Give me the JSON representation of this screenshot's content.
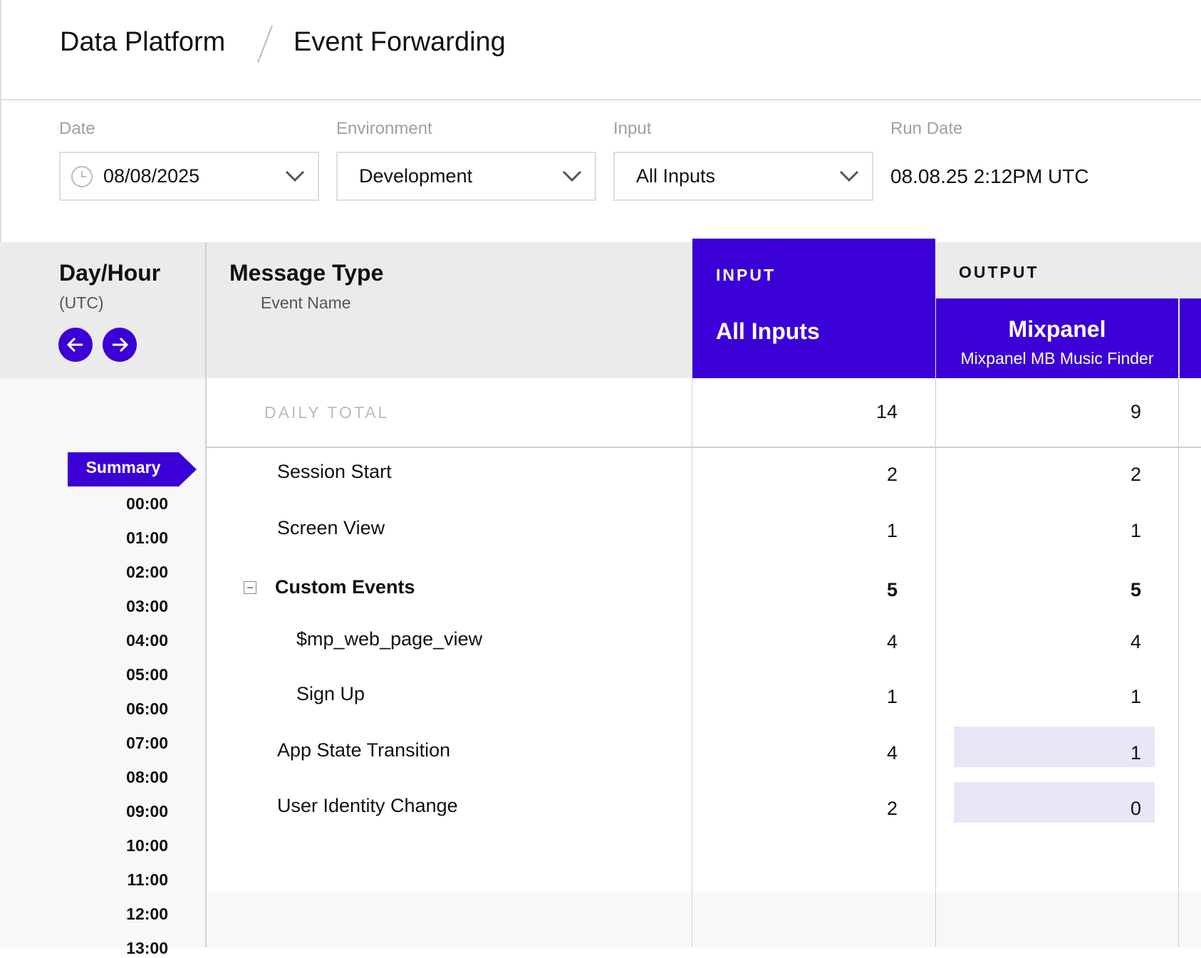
{
  "header": {
    "breadcrumb": [
      "Data Platform",
      "Event Forwarding"
    ]
  },
  "filters": [
    {
      "label": "Date",
      "value": "08/08/2025"
    },
    {
      "label": "Environment",
      "value": "Development"
    },
    {
      "label": "Input",
      "value": "All Inputs"
    },
    {
      "label": "Run Date",
      "value": "08.08.25 2:12PM UTC"
    }
  ],
  "table": {
    "day_hour": {
      "title": "Day/Hour",
      "subtitle": "(UTC)"
    },
    "message_type": {
      "title": "Message Type",
      "subtitle": "Event Name"
    },
    "input": {
      "section": "INPUT",
      "name": "All Inputs"
    },
    "output": {
      "section": "OUTPUT",
      "name": "Mixpanel",
      "subtitle": "Mixpanel MB Music Finder"
    },
    "daily_total": {
      "label": "DAILY TOTAL",
      "input": 14,
      "output": 9
    },
    "rows": [
      {
        "name": "Session Start",
        "input": 2,
        "output": 2,
        "level": 1,
        "bold": false,
        "highlight": false
      },
      {
        "name": "Screen View",
        "input": 1,
        "output": 1,
        "level": 1,
        "bold": false,
        "highlight": false
      },
      {
        "name": "Custom Events",
        "input": 5,
        "output": 5,
        "level": 1,
        "bold": true,
        "highlight": false
      },
      {
        "name": "$mp_web_page_view",
        "input": 4,
        "output": 4,
        "level": 2,
        "bold": false,
        "highlight": false
      },
      {
        "name": "Sign Up",
        "input": 1,
        "output": 1,
        "level": 2,
        "bold": false,
        "highlight": false
      },
      {
        "name": "App State Transition",
        "input": 4,
        "output": 1,
        "level": 1,
        "bold": false,
        "highlight": true
      },
      {
        "name": "User Identity Change",
        "input": 2,
        "output": 0,
        "level": 1,
        "bold": false,
        "highlight": true
      }
    ],
    "hours": [
      "Summary",
      "00:00",
      "01:00",
      "02:00",
      "03:00",
      "04:00",
      "05:00",
      "06:00",
      "07:00",
      "08:00",
      "09:00",
      "10:00",
      "11:00",
      "12:00",
      "13:00"
    ]
  }
}
